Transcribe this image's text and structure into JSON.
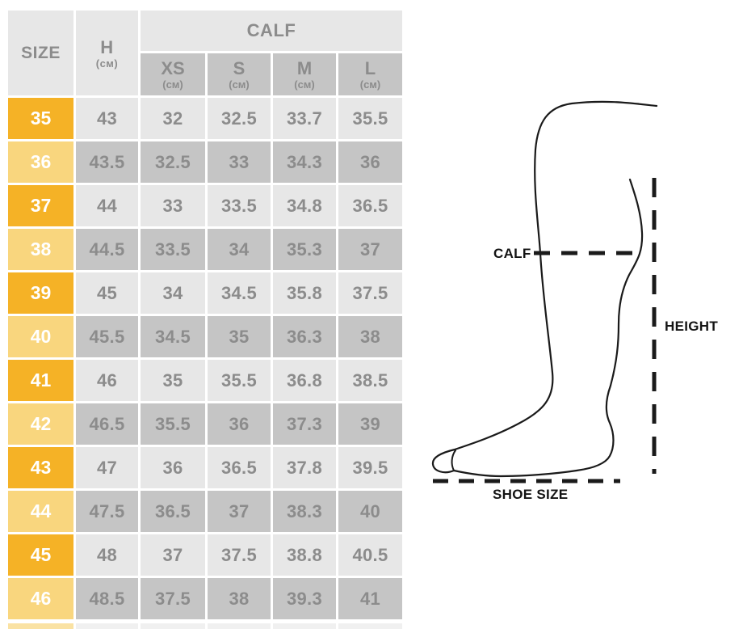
{
  "colors": {
    "row_accent_orange": "#F5B226",
    "row_accent_yellow": "#F9D67E",
    "cell_light_gray": "#E7E7E7",
    "cell_dark_gray": "#C5C5C5",
    "table_text_gray": "#8C8C8C",
    "size_text_white": "#FFFFFF",
    "diagram_line_black": "#1A1A1A",
    "partial_row_yellow": "#FAE2A3",
    "partial_row_gray": "#F0F0F0"
  },
  "table": {
    "headers": {
      "size": "SIZE",
      "height": "H",
      "unit": "(см)",
      "calf": "CALF",
      "calf_sizes": [
        "XS",
        "S",
        "M",
        "L"
      ]
    },
    "rows": [
      {
        "size": "35",
        "h": "43",
        "xs": "32",
        "s": "32.5",
        "m": "33.7",
        "l": "35.5"
      },
      {
        "size": "36",
        "h": "43.5",
        "xs": "32.5",
        "s": "33",
        "m": "34.3",
        "l": "36"
      },
      {
        "size": "37",
        "h": "44",
        "xs": "33",
        "s": "33.5",
        "m": "34.8",
        "l": "36.5"
      },
      {
        "size": "38",
        "h": "44.5",
        "xs": "33.5",
        "s": "34",
        "m": "35.3",
        "l": "37"
      },
      {
        "size": "39",
        "h": "45",
        "xs": "34",
        "s": "34.5",
        "m": "35.8",
        "l": "37.5"
      },
      {
        "size": "40",
        "h": "45.5",
        "xs": "34.5",
        "s": "35",
        "m": "36.3",
        "l": "38"
      },
      {
        "size": "41",
        "h": "46",
        "xs": "35",
        "s": "35.5",
        "m": "36.8",
        "l": "38.5"
      },
      {
        "size": "42",
        "h": "46.5",
        "xs": "35.5",
        "s": "36",
        "m": "37.3",
        "l": "39"
      },
      {
        "size": "43",
        "h": "47",
        "xs": "36",
        "s": "36.5",
        "m": "37.8",
        "l": "39.5"
      },
      {
        "size": "44",
        "h": "47.5",
        "xs": "36.5",
        "s": "37",
        "m": "38.3",
        "l": "40"
      },
      {
        "size": "45",
        "h": "48",
        "xs": "37",
        "s": "37.5",
        "m": "38.8",
        "l": "40.5"
      },
      {
        "size": "46",
        "h": "48.5",
        "xs": "37.5",
        "s": "38",
        "m": "39.3",
        "l": "41"
      }
    ]
  },
  "diagram": {
    "calf_label": "CALF",
    "height_label": "HEIGHT",
    "shoe_size_label": "SHOE SIZE"
  },
  "chart_data": {
    "type": "table",
    "columns": [
      "SIZE",
      "H (см)",
      "CALF XS (см)",
      "CALF S (см)",
      "CALF M (см)",
      "CALF L (см)"
    ],
    "rows": [
      [
        35,
        43,
        32,
        32.5,
        33.7,
        35.5
      ],
      [
        36,
        43.5,
        32.5,
        33,
        34.3,
        36
      ],
      [
        37,
        44,
        33,
        33.5,
        34.8,
        36.5
      ],
      [
        38,
        44.5,
        33.5,
        34,
        35.3,
        37
      ],
      [
        39,
        45,
        34,
        34.5,
        35.8,
        37.5
      ],
      [
        40,
        45.5,
        34.5,
        35,
        36.3,
        38
      ],
      [
        41,
        46,
        35,
        35.5,
        36.8,
        38.5
      ],
      [
        42,
        46.5,
        35.5,
        36,
        37.3,
        39
      ],
      [
        43,
        47,
        36,
        36.5,
        37.8,
        39.5
      ],
      [
        44,
        47.5,
        36.5,
        37,
        38.3,
        40
      ],
      [
        45,
        48,
        37,
        37.5,
        38.8,
        40.5
      ],
      [
        46,
        48.5,
        37.5,
        38,
        39.3,
        41
      ]
    ],
    "annotations": [
      "CALF",
      "HEIGHT",
      "SHOE SIZE"
    ]
  }
}
